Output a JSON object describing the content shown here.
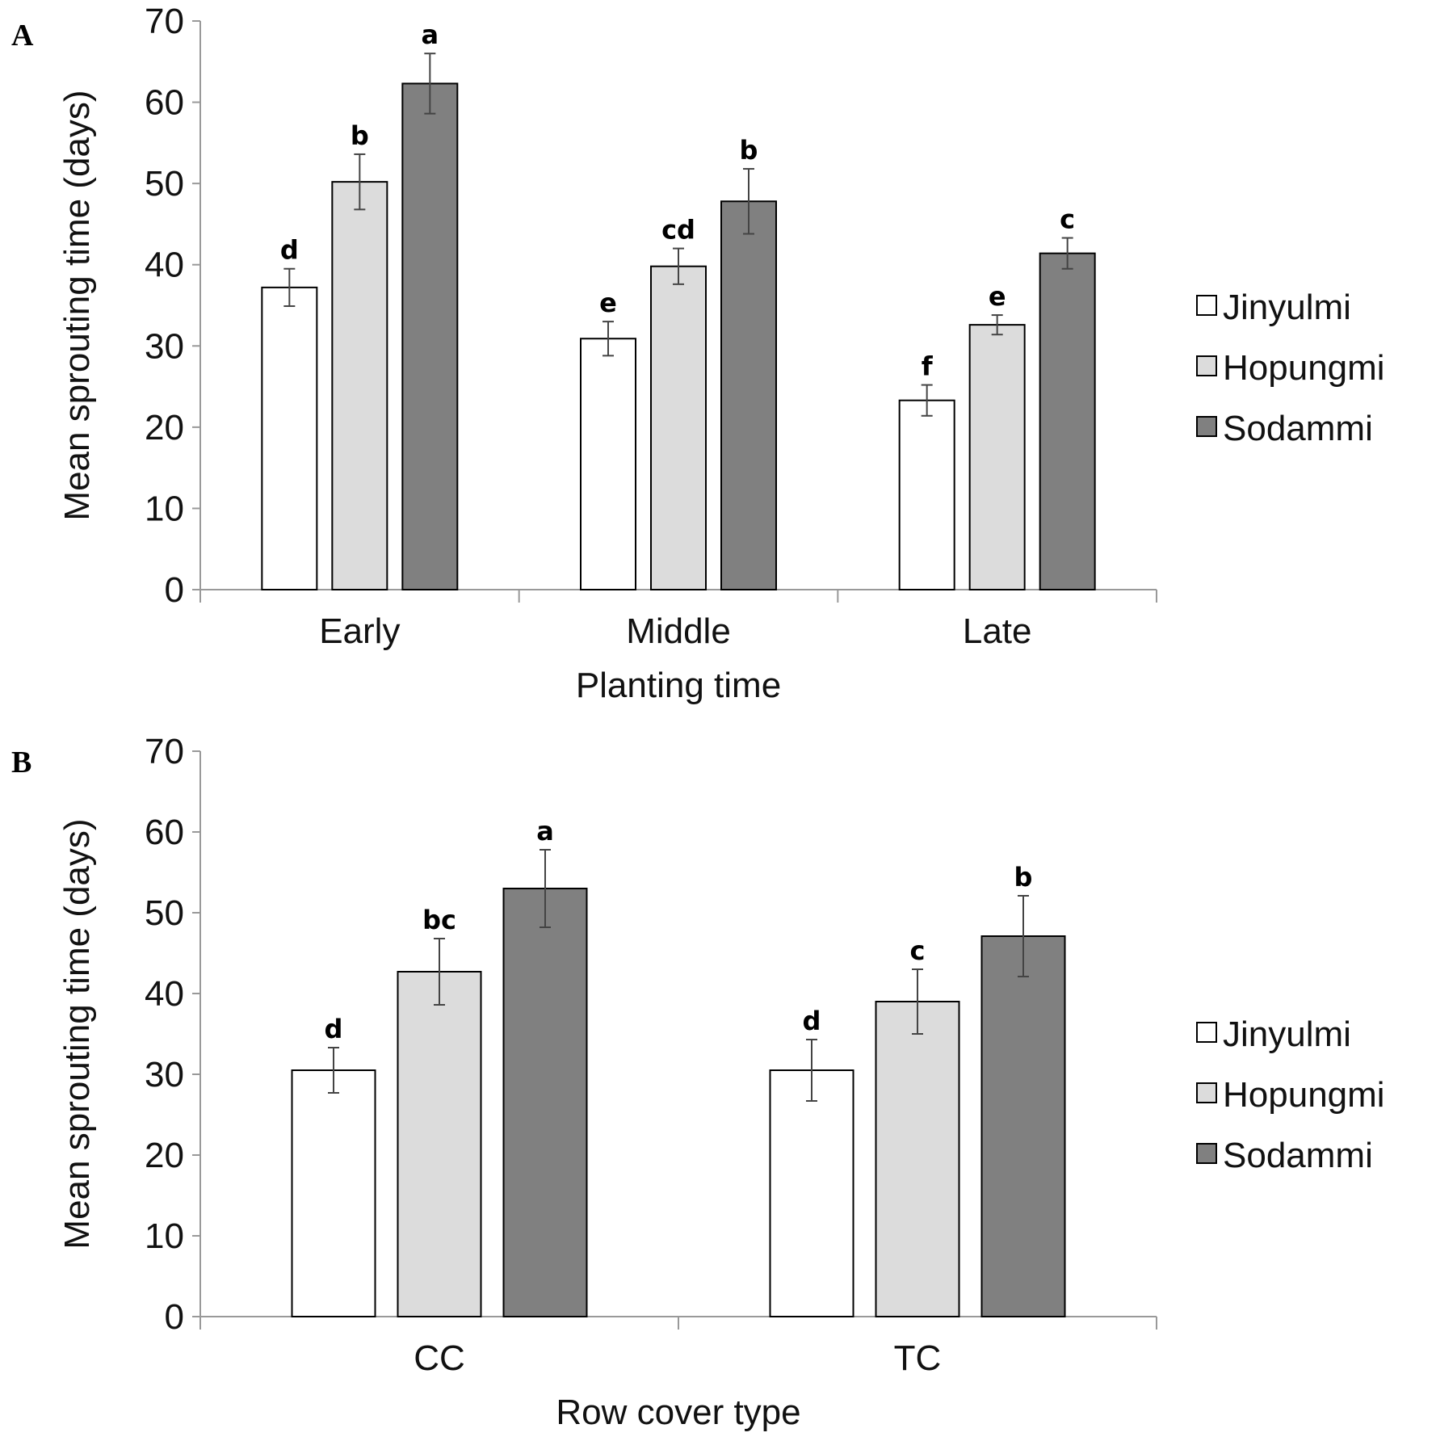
{
  "colors": {
    "Jinyulmi": "#ffffff",
    "Hopungmi": "#dcdcdc",
    "Sodammi": "#808080",
    "axis": "#999999",
    "bar_stroke": "#000000",
    "error_bar": "#444444"
  },
  "chart_data": [
    {
      "panel": "A",
      "type": "bar",
      "title": "",
      "xlabel": "Planting time",
      "ylabel": "Mean sprouting time (days)",
      "ylim": [
        0,
        70
      ],
      "yticks": [
        0,
        10,
        20,
        30,
        40,
        50,
        60,
        70
      ],
      "categories": [
        "Early",
        "Middle",
        "Late"
      ],
      "series": [
        {
          "name": "Jinyulmi",
          "values": [
            37.2,
            30.9,
            23.3
          ],
          "errors": [
            2.3,
            2.1,
            1.9
          ],
          "labels": [
            "d",
            "e",
            "f"
          ]
        },
        {
          "name": "Hopungmi",
          "values": [
            50.2,
            39.8,
            32.6
          ],
          "errors": [
            3.4,
            2.2,
            1.2
          ],
          "labels": [
            "b",
            "cd",
            "e"
          ]
        },
        {
          "name": "Sodammi",
          "values": [
            62.3,
            47.8,
            41.4
          ],
          "errors": [
            3.7,
            4.0,
            1.9
          ],
          "labels": [
            "a",
            "b",
            "c"
          ]
        }
      ],
      "legend": [
        "Jinyulmi",
        "Hopungmi",
        "Sodammi"
      ],
      "legend_position": "right"
    },
    {
      "panel": "B",
      "type": "bar",
      "title": "",
      "xlabel": "Row cover type",
      "ylabel": "Mean sprouting time (days)",
      "ylim": [
        0,
        70
      ],
      "yticks": [
        0,
        10,
        20,
        30,
        40,
        50,
        60,
        70
      ],
      "categories": [
        "CC",
        "TC"
      ],
      "series": [
        {
          "name": "Jinyulmi",
          "values": [
            30.5,
            30.5
          ],
          "errors": [
            2.8,
            3.8
          ],
          "labels": [
            "d",
            "d"
          ]
        },
        {
          "name": "Hopungmi",
          "values": [
            42.7,
            39.0
          ],
          "errors": [
            4.1,
            4.0
          ],
          "labels": [
            "bc",
            "c"
          ]
        },
        {
          "name": "Sodammi",
          "values": [
            53.0,
            47.1
          ],
          "errors": [
            4.8,
            5.0
          ],
          "labels": [
            "a",
            "b"
          ]
        }
      ],
      "legend": [
        "Jinyulmi",
        "Hopungmi",
        "Sodammi"
      ],
      "legend_position": "right"
    }
  ]
}
